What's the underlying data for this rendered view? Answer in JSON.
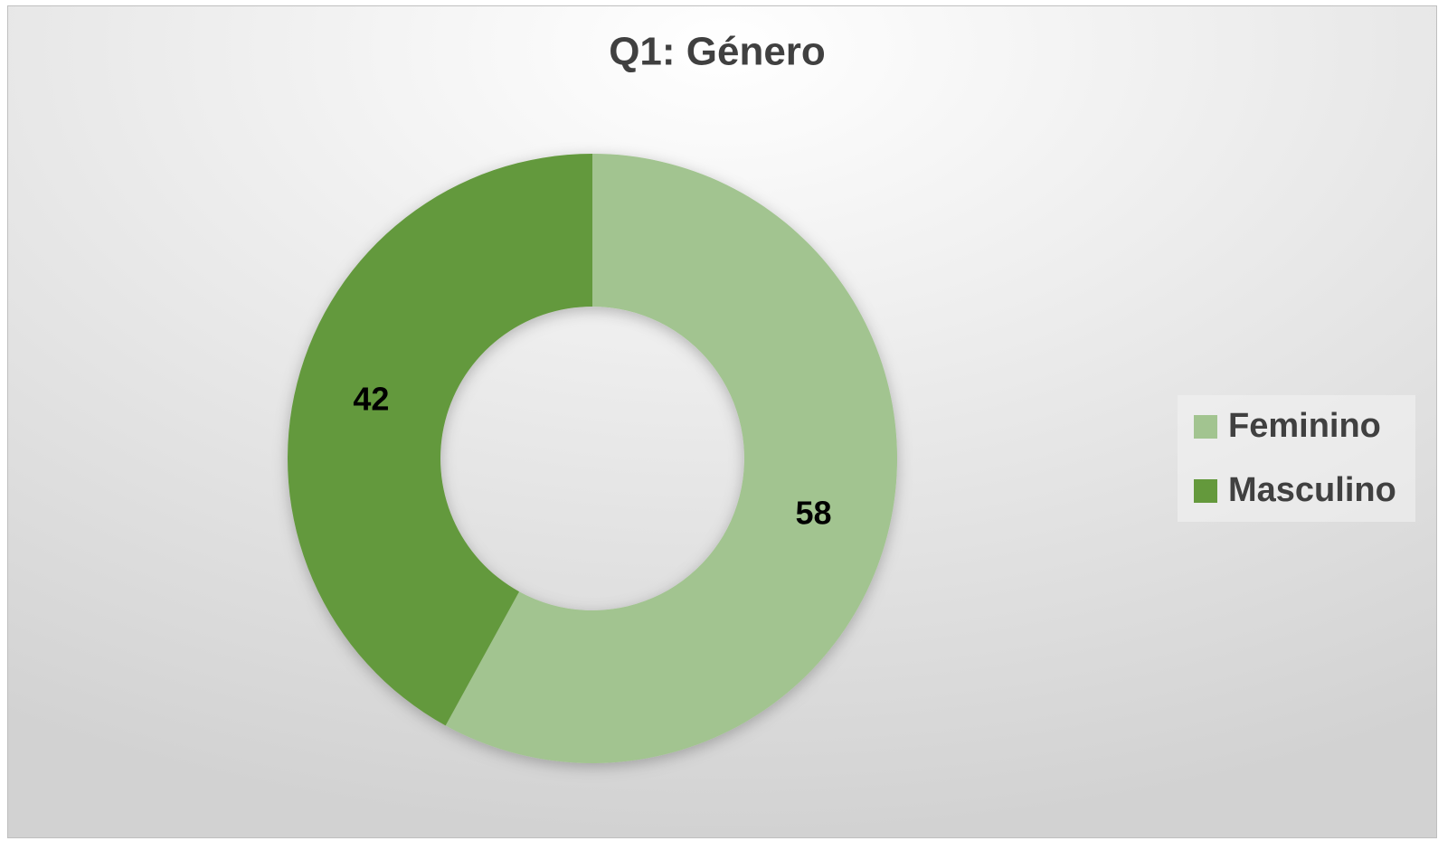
{
  "chart_data": {
    "type": "doughnut",
    "title": "Q1: Género",
    "categories": [
      "Feminino",
      "Masculino"
    ],
    "values": [
      58,
      42
    ],
    "colors": [
      "#a2c490",
      "#64993c"
    ],
    "legend": "right"
  }
}
